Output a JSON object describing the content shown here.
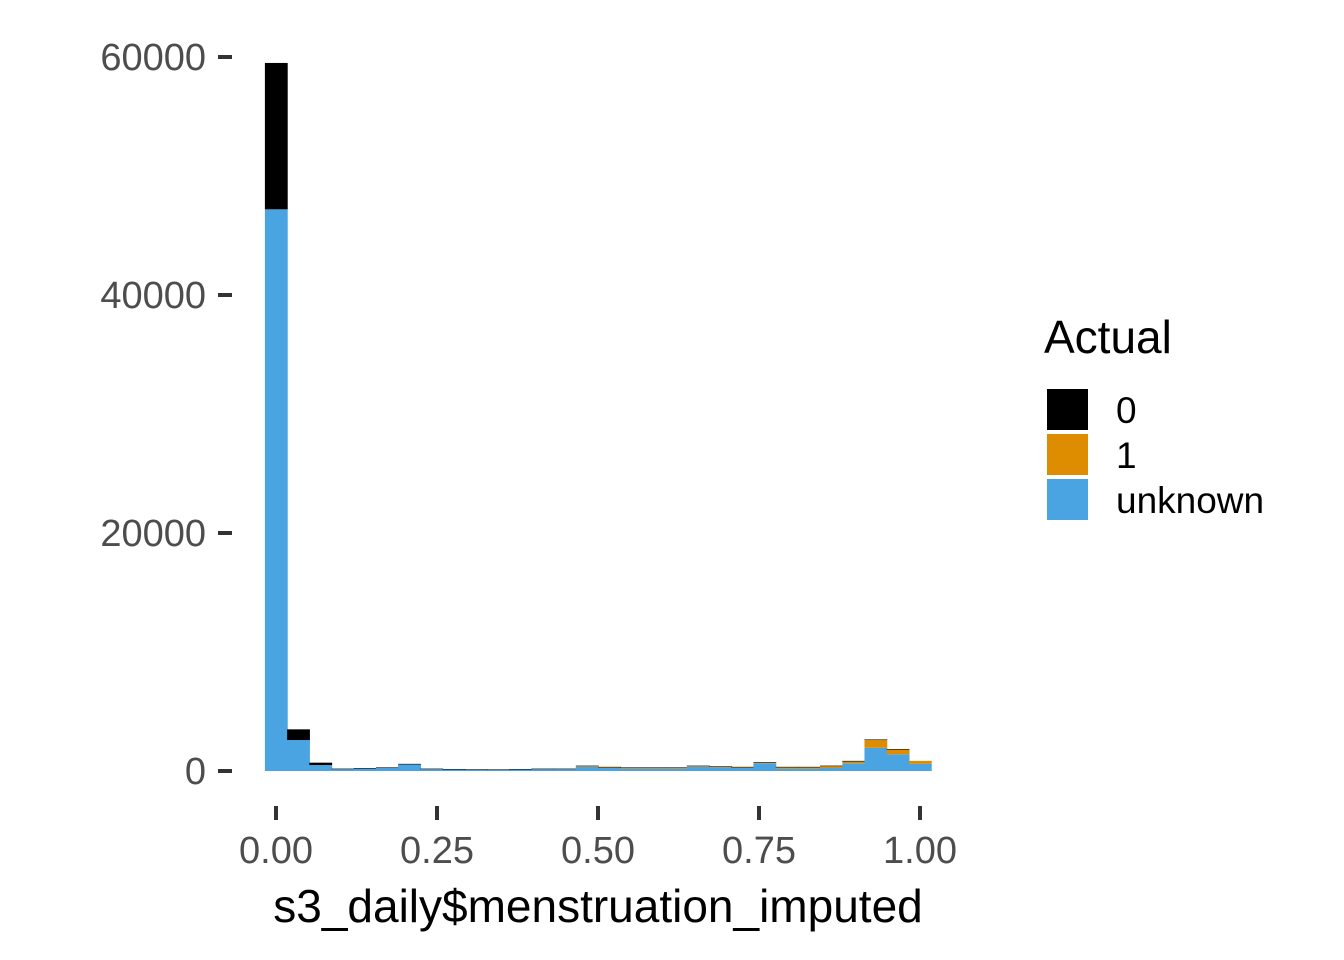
{
  "chart_data": {
    "type": "bar",
    "subtype": "stacked histogram",
    "xlabel": "s3_daily$menstruation_imputed",
    "ylabel": "",
    "xlim": [
      -0.025,
      1.025
    ],
    "ylim": [
      0,
      60000
    ],
    "x_ticks": [
      "0.00",
      "0.25",
      "0.50",
      "0.75",
      "1.00"
    ],
    "y_ticks": [
      "0",
      "20000",
      "40000",
      "60000"
    ],
    "bin_width": 0.0345,
    "bin_centers": [
      0,
      0.0345,
      0.069,
      0.1034,
      0.1379,
      0.1724,
      0.2069,
      0.2414,
      0.2759,
      0.3103,
      0.3448,
      0.3793,
      0.4138,
      0.4483,
      0.4828,
      0.5172,
      0.5517,
      0.5862,
      0.6207,
      0.6552,
      0.6897,
      0.7241,
      0.7586,
      0.7931,
      0.8276,
      0.8621,
      0.8966,
      0.931,
      0.9655,
      1.0
    ],
    "legend": {
      "title": "Actual",
      "position": "right",
      "entries": [
        "0",
        "1",
        "unknown"
      ]
    },
    "series": [
      {
        "name": "unknown",
        "color": "#4aa4e2",
        "values": [
          47200,
          2600,
          500,
          150,
          200,
          250,
          550,
          150,
          120,
          100,
          80,
          120,
          150,
          150,
          350,
          250,
          200,
          200,
          200,
          350,
          300,
          250,
          650,
          200,
          200,
          250,
          650,
          1950,
          1400,
          600
        ]
      },
      {
        "name": "1",
        "color": "#de8c00",
        "values": [
          0,
          0,
          0,
          0,
          0,
          0,
          0,
          0,
          0,
          0,
          0,
          0,
          0,
          0,
          50,
          50,
          50,
          50,
          50,
          50,
          50,
          50,
          50,
          100,
          100,
          150,
          150,
          650,
          400,
          250
        ]
      },
      {
        "name": "0",
        "color": "#000000",
        "values": [
          12300,
          900,
          200,
          50,
          50,
          50,
          50,
          50,
          50,
          50,
          50,
          50,
          50,
          50,
          50,
          50,
          50,
          50,
          50,
          50,
          50,
          50,
          50,
          50,
          50,
          50,
          50,
          50,
          50,
          0
        ]
      }
    ],
    "grid": false
  }
}
